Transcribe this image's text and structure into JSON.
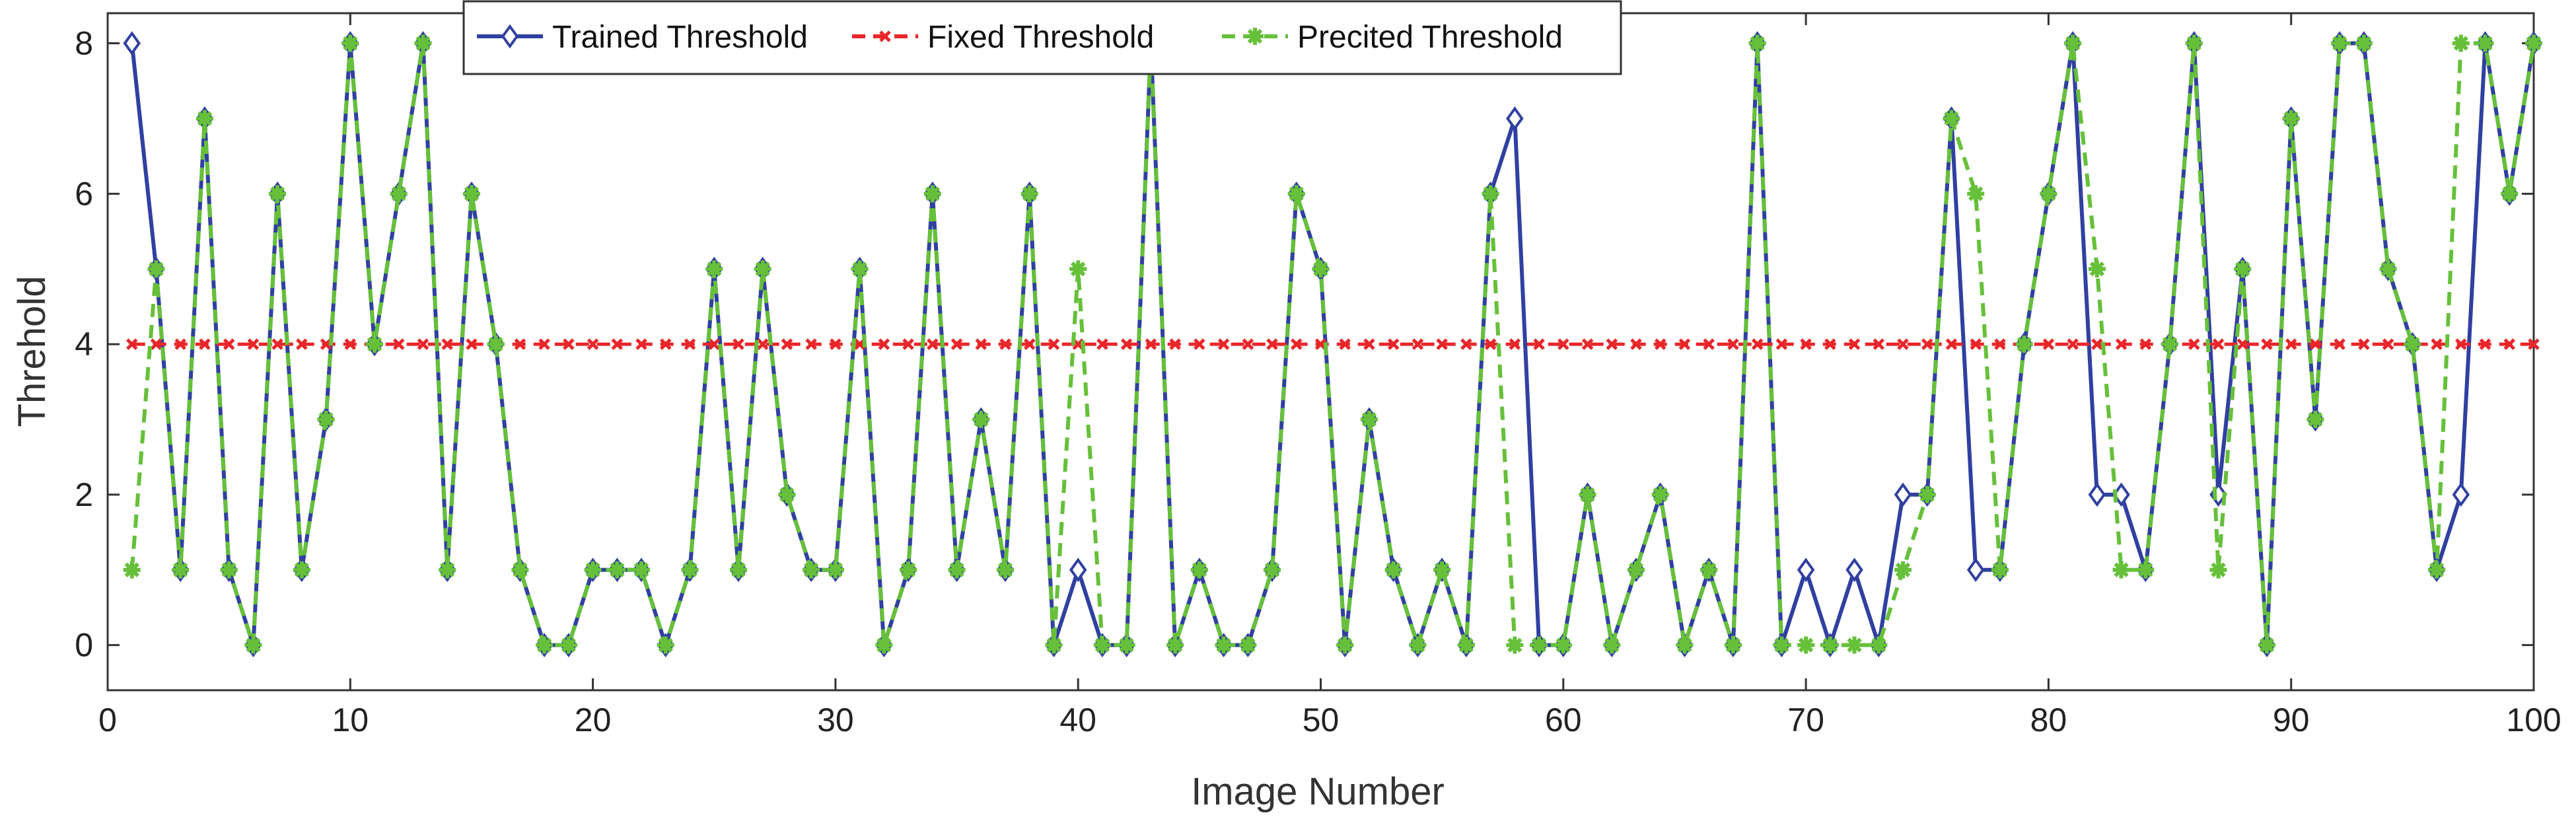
{
  "chart_data": {
    "type": "line",
    "title": "",
    "xlabel": "Image Number",
    "ylabel": "Threhold",
    "xlim": [
      0,
      100
    ],
    "ylim": [
      -0.6,
      8.4
    ],
    "xticks": [
      0,
      10,
      20,
      30,
      40,
      50,
      60,
      70,
      80,
      90,
      100
    ],
    "yticks": [
      0,
      2,
      4,
      6,
      8
    ],
    "grid": false,
    "legend_position": "top-center",
    "x": [
      1,
      2,
      3,
      4,
      5,
      6,
      7,
      8,
      9,
      10,
      11,
      12,
      13,
      14,
      15,
      16,
      17,
      18,
      19,
      20,
      21,
      22,
      23,
      24,
      25,
      26,
      27,
      28,
      29,
      30,
      31,
      32,
      33,
      34,
      35,
      36,
      37,
      38,
      39,
      40,
      41,
      42,
      43,
      44,
      45,
      46,
      47,
      48,
      49,
      50,
      51,
      52,
      53,
      54,
      55,
      56,
      57,
      58,
      59,
      60,
      61,
      62,
      63,
      64,
      65,
      66,
      67,
      68,
      69,
      70,
      71,
      72,
      73,
      74,
      75,
      76,
      77,
      78,
      79,
      80,
      81,
      82,
      83,
      84,
      85,
      86,
      87,
      88,
      89,
      90,
      91,
      92,
      93,
      94,
      95,
      96,
      97,
      98,
      99,
      100
    ],
    "series": [
      {
        "name": "Trained Threshold",
        "color": "#3040a0",
        "line_style": "solid",
        "marker": "diamond",
        "values": [
          8,
          5,
          1,
          7,
          1,
          0,
          6,
          1,
          3,
          8,
          4,
          6,
          8,
          1,
          6,
          4,
          1,
          0,
          0,
          1,
          1,
          1,
          0,
          1,
          5,
          1,
          5,
          2,
          1,
          1,
          5,
          0,
          1,
          6,
          1,
          3,
          1,
          6,
          0,
          1,
          0,
          0,
          8,
          0,
          1,
          0,
          0,
          1,
          6,
          5,
          0,
          3,
          1,
          0,
          1,
          0,
          6,
          7,
          0,
          0,
          2,
          0,
          1,
          2,
          0,
          1,
          0,
          8,
          0,
          1,
          0,
          1,
          0,
          2,
          2,
          7,
          1,
          1,
          4,
          6,
          8,
          2,
          2,
          1,
          4,
          8,
          2,
          5,
          0,
          7,
          3,
          8,
          8,
          5,
          4,
          1,
          2,
          8,
          6,
          8
        ]
      },
      {
        "name": "Fixed Threshold",
        "color": "#e8262a",
        "line_style": "dashed",
        "marker": "x",
        "values": [
          4,
          4,
          4,
          4,
          4,
          4,
          4,
          4,
          4,
          4,
          4,
          4,
          4,
          4,
          4,
          4,
          4,
          4,
          4,
          4,
          4,
          4,
          4,
          4,
          4,
          4,
          4,
          4,
          4,
          4,
          4,
          4,
          4,
          4,
          4,
          4,
          4,
          4,
          4,
          4,
          4,
          4,
          4,
          4,
          4,
          4,
          4,
          4,
          4,
          4,
          4,
          4,
          4,
          4,
          4,
          4,
          4,
          4,
          4,
          4,
          4,
          4,
          4,
          4,
          4,
          4,
          4,
          4,
          4,
          4,
          4,
          4,
          4,
          4,
          4,
          4,
          4,
          4,
          4,
          4,
          4,
          4,
          4,
          4,
          4,
          4,
          4,
          4,
          4,
          4,
          4,
          4,
          4,
          4,
          4,
          4,
          4,
          4,
          4,
          4
        ]
      },
      {
        "name": "Precited Threshold",
        "color": "#66c03a",
        "line_style": "dashed",
        "marker": "star",
        "values": [
          1,
          5,
          1,
          7,
          1,
          0,
          6,
          1,
          3,
          8,
          4,
          6,
          8,
          1,
          6,
          4,
          1,
          0,
          0,
          1,
          1,
          1,
          0,
          1,
          5,
          1,
          5,
          2,
          1,
          1,
          5,
          0,
          1,
          6,
          1,
          3,
          1,
          6,
          0,
          5,
          0,
          0,
          8,
          0,
          1,
          0,
          0,
          1,
          6,
          5,
          0,
          3,
          1,
          0,
          1,
          0,
          6,
          0,
          0,
          0,
          2,
          0,
          1,
          2,
          0,
          1,
          0,
          8,
          0,
          0,
          0,
          0,
          0,
          1,
          2,
          7,
          6,
          1,
          4,
          6,
          8,
          5,
          1,
          1,
          4,
          8,
          1,
          5,
          0,
          7,
          3,
          8,
          8,
          5,
          4,
          1,
          8,
          8,
          6,
          8
        ]
      }
    ]
  }
}
